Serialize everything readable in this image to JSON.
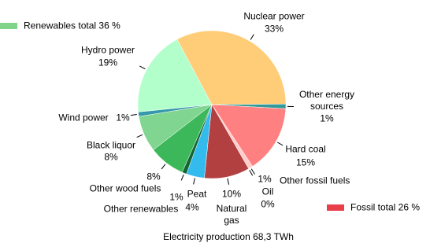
{
  "chart_data": {
    "type": "pie",
    "title": "Electricity production 68,3 TWh",
    "categories": [
      "Nuclear power",
      "Other energy sources",
      "Hard coal",
      "Other fossil fuels",
      "Oil",
      "Natural gas",
      "Peat",
      "Other renewables",
      "Other wood fuels",
      "Black liquor",
      "Wind power",
      "Hydro power"
    ],
    "values": [
      33,
      1,
      15,
      1,
      0,
      10,
      4,
      1,
      8,
      8,
      1,
      19
    ],
    "value_labels": [
      "33%",
      "1%",
      "15%",
      "1%",
      "0%",
      "10%",
      "4%",
      "1%",
      "8%",
      "8%",
      "1%",
      "19%"
    ],
    "colors": [
      "#ffcc77",
      "#339999",
      "#ff8080",
      "#ffcccc",
      "#cc3333",
      "#b34040",
      "#33bbee",
      "#116633",
      "#3cb85a",
      "#80d690",
      "#3399aa",
      "#b3ffcc"
    ],
    "legend": [
      {
        "name": "Renewables total 36 %",
        "color": "#7fd48a"
      },
      {
        "name": "Fossil total 26 %",
        "color": "#e8404a"
      }
    ]
  }
}
